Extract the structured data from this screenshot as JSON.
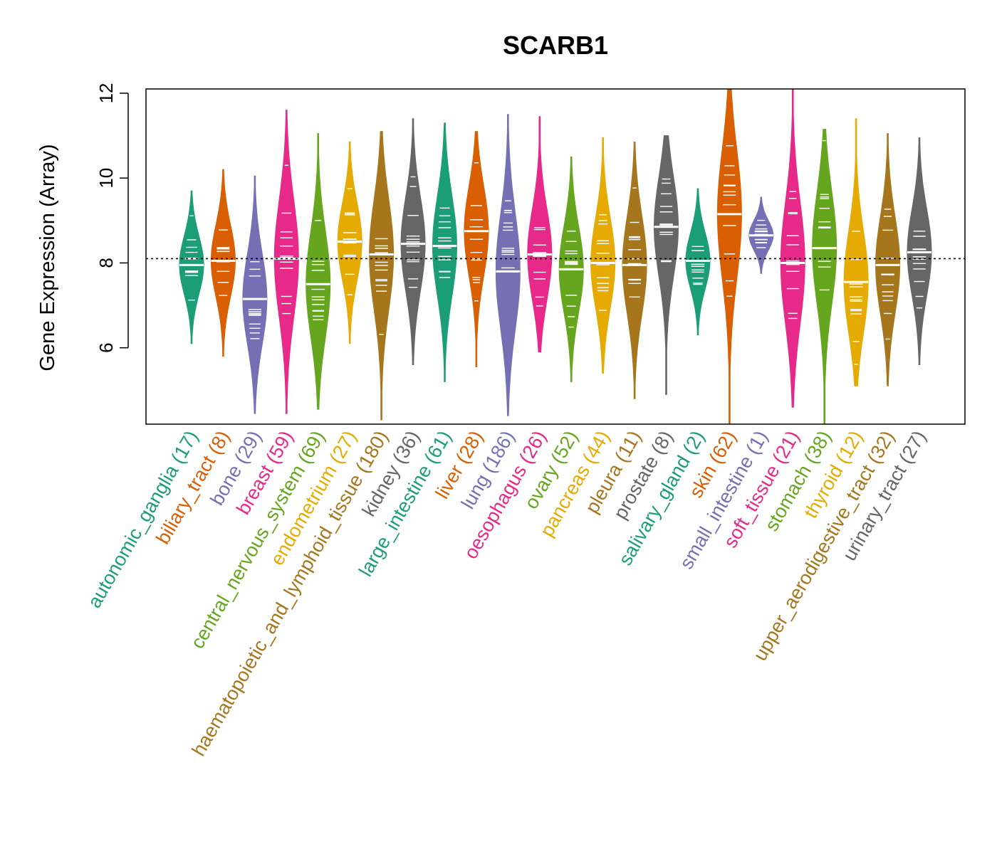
{
  "chart_data": {
    "type": "violin",
    "title": "SCARB1",
    "ylabel": "Gene Expression (Array)",
    "xlabel": "",
    "ylim": [
      4.2,
      12.1
    ],
    "yticks": [
      6,
      8,
      10,
      12
    ],
    "reference_line": 8.1,
    "categories": [
      {
        "label": "autonomic_ganglia (17)",
        "color": "#1B9E77",
        "min": 6.1,
        "max": 9.7,
        "median": 7.95
      },
      {
        "label": "biliary_tract (8)",
        "color": "#D95F02",
        "min": 5.8,
        "max": 10.2,
        "median": 8.05
      },
      {
        "label": "bone (29)",
        "color": "#7570B3",
        "min": 4.45,
        "max": 10.05,
        "median": 7.15
      },
      {
        "label": "breast (59)",
        "color": "#E7298A",
        "min": 4.45,
        "max": 11.6,
        "median": 8.1
      },
      {
        "label": "central_nervous_system (69)",
        "color": "#66A61E",
        "min": 4.55,
        "max": 11.05,
        "median": 7.5
      },
      {
        "label": "endometrium (27)",
        "color": "#E6AB02",
        "min": 6.1,
        "max": 10.85,
        "median": 8.5
      },
      {
        "label": "haematopoietic_and_lymphoid_tissue (180)",
        "color": "#A6761D",
        "min": 4.3,
        "max": 11.1,
        "median": 8.2
      },
      {
        "label": "kidney (36)",
        "color": "#666666",
        "min": 5.6,
        "max": 11.4,
        "median": 8.45
      },
      {
        "label": "large_intestine (61)",
        "color": "#1B9E77",
        "min": 5.2,
        "max": 11.3,
        "median": 8.4
      },
      {
        "label": "liver (28)",
        "color": "#D95F02",
        "min": 5.55,
        "max": 11.1,
        "median": 8.75
      },
      {
        "label": "lung (186)",
        "color": "#7570B3",
        "min": 4.4,
        "max": 11.5,
        "median": 7.8
      },
      {
        "label": "oesophagus (26)",
        "color": "#E7298A",
        "min": 5.9,
        "max": 11.45,
        "median": 8.2
      },
      {
        "label": "ovary (52)",
        "color": "#66A61E",
        "min": 5.2,
        "max": 10.5,
        "median": 7.85
      },
      {
        "label": "pancreas (44)",
        "color": "#E6AB02",
        "min": 5.4,
        "max": 10.95,
        "median": 8.0
      },
      {
        "label": "pleura (11)",
        "color": "#A6761D",
        "min": 4.8,
        "max": 10.85,
        "median": 7.95
      },
      {
        "label": "prostate (8)",
        "color": "#666666",
        "min": 4.9,
        "max": 11.0,
        "median": 8.85
      },
      {
        "label": "salivary_gland (2)",
        "color": "#1B9E77",
        "min": 6.3,
        "max": 9.75,
        "median": 8.05
      },
      {
        "label": "skin (62)",
        "color": "#D95F02",
        "min": 4.2,
        "max": 12.1,
        "median": 9.15
      },
      {
        "label": "small_intestine (1)",
        "color": "#7570B3",
        "min": 7.75,
        "max": 9.55,
        "median": 8.65
      },
      {
        "label": "soft_tissue (21)",
        "color": "#E7298A",
        "min": 4.6,
        "max": 12.1,
        "median": 8.0
      },
      {
        "label": "stomach (38)",
        "color": "#66A61E",
        "min": 4.2,
        "max": 11.15,
        "median": 8.35
      },
      {
        "label": "thyroid (12)",
        "color": "#E6AB02",
        "min": 5.1,
        "max": 11.4,
        "median": 7.55
      },
      {
        "label": "upper_aerodigestive_tract (32)",
        "color": "#A6761D",
        "min": 5.1,
        "max": 11.05,
        "median": 7.95
      },
      {
        "label": "urinary_tract (27)",
        "color": "#666666",
        "min": 5.6,
        "max": 10.95,
        "median": 8.25
      }
    ]
  }
}
